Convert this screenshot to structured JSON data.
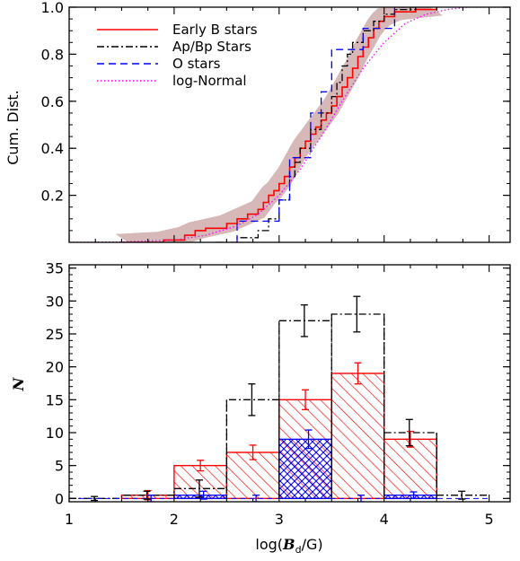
{
  "chart_data": [
    {
      "type": "line",
      "subtype": "cumulative-distribution",
      "ylabel": "Cum. Dist.",
      "xlim": [
        1.0,
        5.2
      ],
      "ylim": [
        0.0,
        1.0
      ],
      "yticks": [
        "0.2",
        "0.4",
        "0.6",
        "0.8",
        "1.0"
      ],
      "legend_position": "top-left",
      "shaded_band_color": "#c8a0a0",
      "series": [
        {
          "name": "Early B stars",
          "style": "solid",
          "color": "#ff0000",
          "points": [
            [
              1.5,
              0.0
            ],
            [
              1.9,
              0.01
            ],
            [
              2.1,
              0.03
            ],
            [
              2.2,
              0.05
            ],
            [
              2.3,
              0.06
            ],
            [
              2.5,
              0.08
            ],
            [
              2.6,
              0.1
            ],
            [
              2.7,
              0.12
            ],
            [
              2.8,
              0.14
            ],
            [
              2.85,
              0.17
            ],
            [
              2.9,
              0.2
            ],
            [
              2.95,
              0.22
            ],
            [
              3.0,
              0.25
            ],
            [
              3.05,
              0.28
            ],
            [
              3.1,
              0.32
            ],
            [
              3.15,
              0.36
            ],
            [
              3.2,
              0.4
            ],
            [
              3.25,
              0.43
            ],
            [
              3.3,
              0.46
            ],
            [
              3.35,
              0.49
            ],
            [
              3.4,
              0.52
            ],
            [
              3.45,
              0.55
            ],
            [
              3.5,
              0.58
            ],
            [
              3.55,
              0.62
            ],
            [
              3.6,
              0.66
            ],
            [
              3.65,
              0.7
            ],
            [
              3.7,
              0.74
            ],
            [
              3.75,
              0.79
            ],
            [
              3.8,
              0.83
            ],
            [
              3.85,
              0.87
            ],
            [
              3.9,
              0.91
            ],
            [
              3.95,
              0.94
            ],
            [
              4.0,
              0.96
            ],
            [
              4.1,
              0.98
            ],
            [
              4.3,
              0.99
            ],
            [
              4.5,
              1.0
            ]
          ]
        },
        {
          "name": "Ap/Bp Stars",
          "style": "dash-dot",
          "color": "#000000",
          "points": [
            [
              2.4,
              0.0
            ],
            [
              2.6,
              0.02
            ],
            [
              2.8,
              0.05
            ],
            [
              2.9,
              0.1
            ],
            [
              3.0,
              0.18
            ],
            [
              3.1,
              0.28
            ],
            [
              3.15,
              0.34
            ],
            [
              3.2,
              0.4
            ],
            [
              3.3,
              0.48
            ],
            [
              3.4,
              0.55
            ],
            [
              3.5,
              0.62
            ],
            [
              3.55,
              0.68
            ],
            [
              3.6,
              0.75
            ],
            [
              3.65,
              0.8
            ],
            [
              3.7,
              0.85
            ],
            [
              3.8,
              0.9
            ],
            [
              3.9,
              0.94
            ],
            [
              4.0,
              0.97
            ],
            [
              4.1,
              0.99
            ],
            [
              4.3,
              1.0
            ]
          ]
        },
        {
          "name": "O stars",
          "style": "dashed",
          "color": "#0000ff",
          "points": [
            [
              2.6,
              0.0
            ],
            [
              2.6,
              0.09
            ],
            [
              3.0,
              0.09
            ],
            [
              3.0,
              0.18
            ],
            [
              3.1,
              0.18
            ],
            [
              3.1,
              0.36
            ],
            [
              3.3,
              0.36
            ],
            [
              3.3,
              0.55
            ],
            [
              3.4,
              0.55
            ],
            [
              3.4,
              0.64
            ],
            [
              3.5,
              0.64
            ],
            [
              3.5,
              0.82
            ],
            [
              3.8,
              0.82
            ],
            [
              3.8,
              0.91
            ],
            [
              4.1,
              0.91
            ],
            [
              4.1,
              1.0
            ],
            [
              4.3,
              1.0
            ]
          ]
        },
        {
          "name": "log-Normal",
          "style": "dotted",
          "color": "#ff00ff",
          "points": [
            [
              1.0,
              0.0
            ],
            [
              1.5,
              0.002
            ],
            [
              2.0,
              0.01
            ],
            [
              2.3,
              0.03
            ],
            [
              2.6,
              0.07
            ],
            [
              2.8,
              0.12
            ],
            [
              3.0,
              0.2
            ],
            [
              3.2,
              0.31
            ],
            [
              3.4,
              0.45
            ],
            [
              3.6,
              0.6
            ],
            [
              3.8,
              0.74
            ],
            [
              4.0,
              0.85
            ],
            [
              4.2,
              0.93
            ],
            [
              4.4,
              0.97
            ],
            [
              4.6,
              0.99
            ],
            [
              4.8,
              1.0
            ],
            [
              5.2,
              1.0
            ]
          ]
        }
      ]
    },
    {
      "type": "bar",
      "subtype": "step-histogram",
      "xlabel_prefix": "log(",
      "xlabel_var": "B",
      "xlabel_sub": "d",
      "xlabel_suffix": "/G)",
      "ylabel": "N",
      "xlim": [
        1.0,
        5.2
      ],
      "ylim": [
        -0.5,
        35.5
      ],
      "xticks": [
        "1",
        "2",
        "3",
        "4",
        "5"
      ],
      "yticks": [
        "0",
        "5",
        "10",
        "15",
        "20",
        "25",
        "30",
        "35"
      ],
      "bin_edges": [
        1.0,
        1.5,
        2.0,
        2.5,
        3.0,
        3.5,
        4.0,
        4.5,
        5.0
      ],
      "series": [
        {
          "name": "Early B stars",
          "style": "red-hatched",
          "color": "#ff0000",
          "values": [
            0,
            0.5,
            5,
            7,
            15,
            19,
            9,
            0
          ],
          "errors": [
            0,
            0.7,
            0.8,
            1.1,
            1.5,
            1.6,
            1.2,
            0
          ]
        },
        {
          "name": "Ap/Bp Stars",
          "style": "dash-dot",
          "color": "#000000",
          "values": [
            0,
            0.5,
            1.5,
            15,
            27,
            28,
            10,
            0.5
          ],
          "errors": [
            0.3,
            0.6,
            1.3,
            2.4,
            2.4,
            2.7,
            2.0,
            0.6
          ]
        },
        {
          "name": "O stars",
          "style": "blue-crosshatched",
          "color": "#0000ff",
          "values": [
            0,
            0,
            0.5,
            0,
            9,
            0,
            0.5,
            0
          ],
          "errors": [
            0,
            0.5,
            0.6,
            0.5,
            1.4,
            0.5,
            0.5,
            0
          ]
        }
      ]
    }
  ]
}
